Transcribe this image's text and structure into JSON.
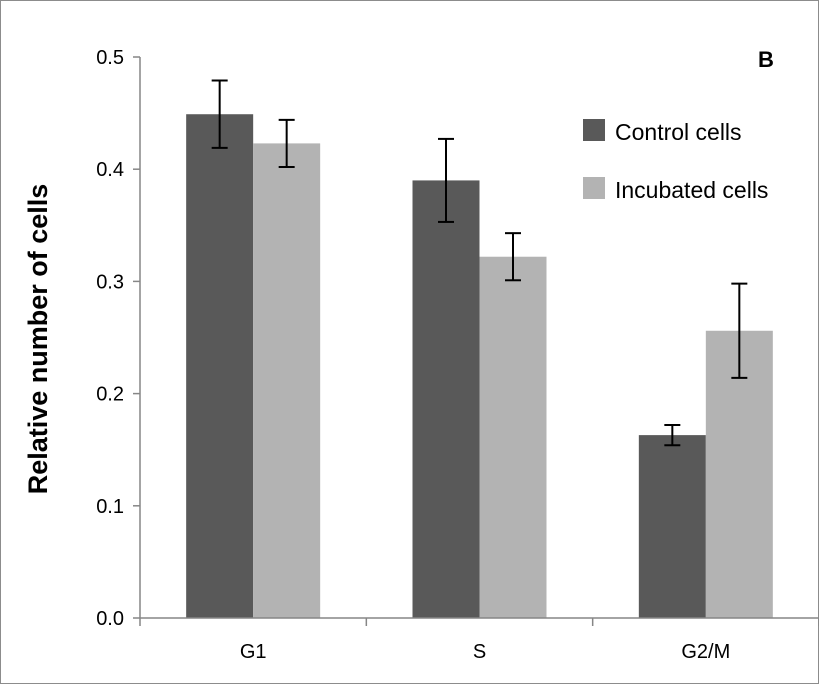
{
  "chart_data": {
    "type": "bar",
    "panel_label": "B",
    "title": "",
    "xlabel": "",
    "ylabel": "Relative number of cells",
    "categories": [
      "G1",
      "S",
      "G2/M"
    ],
    "series": [
      {
        "name": "Control cells",
        "color": "#595959",
        "values": [
          0.449,
          0.39,
          0.163
        ],
        "errors": [
          0.03,
          0.037,
          0.009
        ]
      },
      {
        "name": "Incubated cells",
        "color": "#b3b3b3",
        "values": [
          0.423,
          0.322,
          0.256
        ],
        "errors": [
          0.021,
          0.021,
          0.042
        ]
      }
    ],
    "ylim": [
      0,
      0.5
    ],
    "yticks": [
      "0.0",
      "0.1",
      "0.2",
      "0.3",
      "0.4",
      "0.5"
    ],
    "grid": false,
    "legend_position": "top-right"
  }
}
